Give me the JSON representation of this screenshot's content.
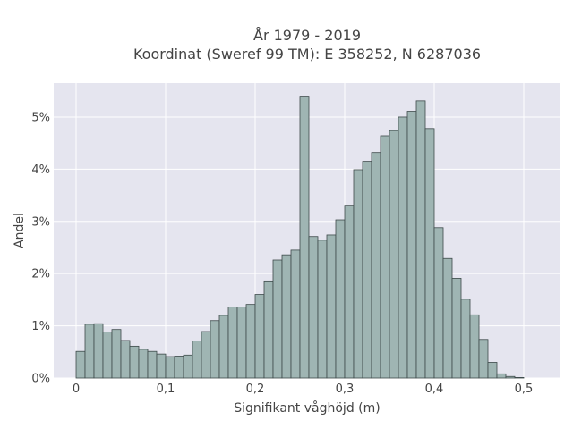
{
  "chart_data": {
    "type": "bar",
    "title": "År 1979 - 2019",
    "subtitle": "Koordinat (Sweref 99 TM): E 358252, N 6287036",
    "xlabel": "Signifikant våghöjd (m)",
    "ylabel": "Andel",
    "bin_width": 0.01,
    "x_start": 0,
    "xlim": [
      -0.025,
      0.54
    ],
    "ylim": [
      0,
      5.65
    ],
    "x_ticks": [
      {
        "value": 0,
        "label": "0"
      },
      {
        "value": 0.1,
        "label": "0,1"
      },
      {
        "value": 0.2,
        "label": "0,2"
      },
      {
        "value": 0.3,
        "label": "0,3"
      },
      {
        "value": 0.4,
        "label": "0,4"
      },
      {
        "value": 0.5,
        "label": "0,5"
      }
    ],
    "y_ticks": [
      {
        "value": 0,
        "label": "0%"
      },
      {
        "value": 1,
        "label": "1%"
      },
      {
        "value": 2,
        "label": "2%"
      },
      {
        "value": 3,
        "label": "3%"
      },
      {
        "value": 4,
        "label": "4%"
      },
      {
        "value": 5,
        "label": "5%"
      }
    ],
    "grid": true,
    "colors": {
      "bar_fill": "#9fb5b3",
      "bar_stroke": "#3d4a4a",
      "plot_bg": "#e5e5ef",
      "grid": "#ffffff"
    },
    "values": [
      0.51,
      1.03,
      1.04,
      0.88,
      0.93,
      0.72,
      0.61,
      0.55,
      0.51,
      0.46,
      0.41,
      0.42,
      0.44,
      0.71,
      0.89,
      1.1,
      1.2,
      1.36,
      1.36,
      1.41,
      1.6,
      1.86,
      2.26,
      2.36,
      2.45,
      5.4,
      2.71,
      2.64,
      2.74,
      3.03,
      3.31,
      3.99,
      4.15,
      4.32,
      4.64,
      4.74,
      5.0,
      5.11,
      5.31,
      4.78,
      2.88,
      2.29,
      1.91,
      1.51,
      1.21,
      0.74,
      0.3,
      0.08,
      0.03,
      0.01
    ]
  }
}
